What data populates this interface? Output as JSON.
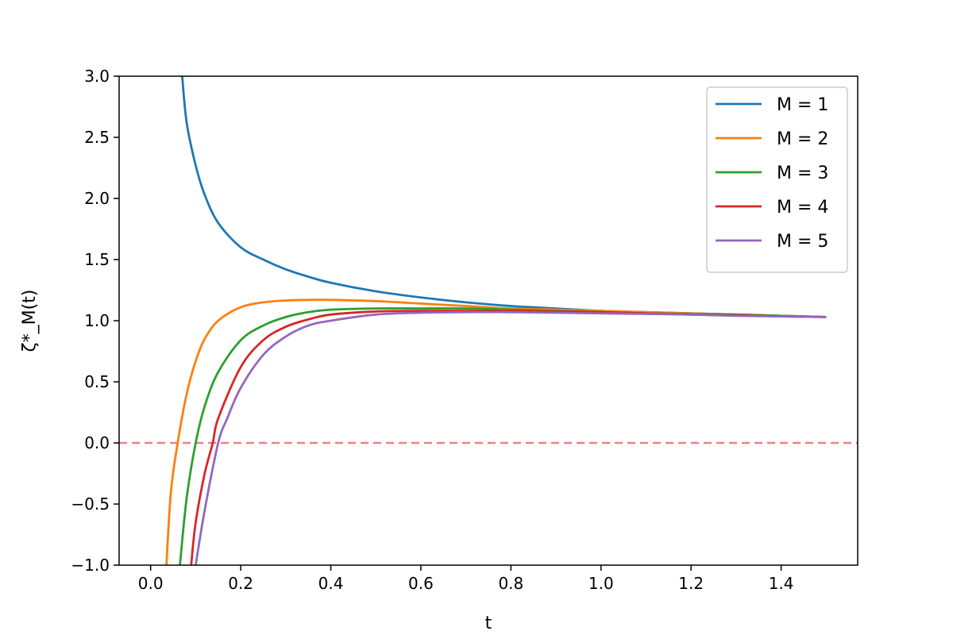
{
  "chart_data": {
    "type": "line",
    "xlabel": "t",
    "ylabel": "ζ*_M(t)",
    "xlim": [
      -0.07,
      1.57
    ],
    "ylim": [
      -1.0,
      3.0
    ],
    "x_ticks": [
      0.0,
      0.2,
      0.4,
      0.6,
      0.8,
      1.0,
      1.2,
      1.4
    ],
    "x_tick_labels": [
      "0.0",
      "0.2",
      "0.4",
      "0.6",
      "0.8",
      "1.0",
      "1.2",
      "1.4"
    ],
    "y_ticks": [
      -1.0,
      -0.5,
      0.0,
      0.5,
      1.0,
      1.5,
      2.0,
      2.5,
      3.0
    ],
    "y_tick_labels": [
      "−1.0",
      "−0.5",
      "0.0",
      "0.5",
      "1.0",
      "1.5",
      "2.0",
      "2.5",
      "3.0"
    ],
    "legend_position": "top-right",
    "reference_line": {
      "y": 0.0,
      "style": "dashed",
      "color": "#f08080"
    },
    "series": [
      {
        "name": "M = 1",
        "color": "#1f77b4",
        "points": [
          [
            0.07,
            3.0
          ],
          [
            0.08,
            2.62
          ],
          [
            0.1,
            2.27
          ],
          [
            0.12,
            2.03
          ],
          [
            0.15,
            1.8
          ],
          [
            0.2,
            1.6
          ],
          [
            0.25,
            1.5
          ],
          [
            0.3,
            1.42
          ],
          [
            0.35,
            1.36
          ],
          [
            0.4,
            1.31
          ],
          [
            0.5,
            1.24
          ],
          [
            0.6,
            1.19
          ],
          [
            0.7,
            1.15
          ],
          [
            0.8,
            1.12
          ],
          [
            0.9,
            1.1
          ],
          [
            1.0,
            1.08
          ],
          [
            1.1,
            1.07
          ],
          [
            1.2,
            1.06
          ],
          [
            1.3,
            1.05
          ],
          [
            1.4,
            1.04
          ],
          [
            1.5,
            1.03
          ]
        ]
      },
      {
        "name": "M = 2",
        "color": "#ff7f0e",
        "points": [
          [
            0.035,
            -1.0
          ],
          [
            0.045,
            -0.4
          ],
          [
            0.06,
            0.0
          ],
          [
            0.08,
            0.4
          ],
          [
            0.1,
            0.67
          ],
          [
            0.12,
            0.85
          ],
          [
            0.15,
            1.0
          ],
          [
            0.2,
            1.11
          ],
          [
            0.25,
            1.15
          ],
          [
            0.3,
            1.165
          ],
          [
            0.35,
            1.17
          ],
          [
            0.4,
            1.17
          ],
          [
            0.5,
            1.16
          ],
          [
            0.6,
            1.14
          ],
          [
            0.7,
            1.12
          ],
          [
            0.8,
            1.1
          ],
          [
            0.9,
            1.09
          ],
          [
            1.0,
            1.08
          ],
          [
            1.1,
            1.07
          ],
          [
            1.2,
            1.06
          ],
          [
            1.3,
            1.05
          ],
          [
            1.4,
            1.04
          ],
          [
            1.5,
            1.03
          ]
        ]
      },
      {
        "name": "M = 3",
        "color": "#2ca02c",
        "points": [
          [
            0.065,
            -1.0
          ],
          [
            0.08,
            -0.45
          ],
          [
            0.1,
            0.0
          ],
          [
            0.12,
            0.3
          ],
          [
            0.15,
            0.58
          ],
          [
            0.2,
            0.84
          ],
          [
            0.25,
            0.96
          ],
          [
            0.3,
            1.03
          ],
          [
            0.35,
            1.07
          ],
          [
            0.4,
            1.09
          ],
          [
            0.5,
            1.1
          ],
          [
            0.6,
            1.1
          ],
          [
            0.7,
            1.1
          ],
          [
            0.8,
            1.09
          ],
          [
            0.9,
            1.08
          ],
          [
            1.0,
            1.07
          ],
          [
            1.1,
            1.06
          ],
          [
            1.2,
            1.055
          ],
          [
            1.3,
            1.05
          ],
          [
            1.4,
            1.04
          ],
          [
            1.5,
            1.03
          ]
        ]
      },
      {
        "name": "M = 4",
        "color": "#d62728",
        "points": [
          [
            0.09,
            -1.0
          ],
          [
            0.1,
            -0.65
          ],
          [
            0.12,
            -0.25
          ],
          [
            0.138,
            0.0
          ],
          [
            0.15,
            0.2
          ],
          [
            0.2,
            0.62
          ],
          [
            0.25,
            0.84
          ],
          [
            0.3,
            0.95
          ],
          [
            0.35,
            1.01
          ],
          [
            0.4,
            1.05
          ],
          [
            0.5,
            1.075
          ],
          [
            0.6,
            1.08
          ],
          [
            0.7,
            1.08
          ],
          [
            0.8,
            1.08
          ],
          [
            0.9,
            1.075
          ],
          [
            1.0,
            1.07
          ],
          [
            1.1,
            1.06
          ],
          [
            1.2,
            1.05
          ],
          [
            1.3,
            1.045
          ],
          [
            1.4,
            1.035
          ],
          [
            1.5,
            1.03
          ]
        ]
      },
      {
        "name": "M = 5",
        "color": "#9467bd",
        "points": [
          [
            0.1,
            -1.0
          ],
          [
            0.12,
            -0.55
          ],
          [
            0.15,
            0.0
          ],
          [
            0.17,
            0.2
          ],
          [
            0.2,
            0.45
          ],
          [
            0.25,
            0.72
          ],
          [
            0.3,
            0.87
          ],
          [
            0.35,
            0.96
          ],
          [
            0.4,
            1.0
          ],
          [
            0.5,
            1.05
          ],
          [
            0.6,
            1.065
          ],
          [
            0.7,
            1.07
          ],
          [
            0.8,
            1.07
          ],
          [
            0.9,
            1.065
          ],
          [
            1.0,
            1.06
          ],
          [
            1.1,
            1.055
          ],
          [
            1.2,
            1.05
          ],
          [
            1.3,
            1.04
          ],
          [
            1.4,
            1.035
          ],
          [
            1.5,
            1.03
          ]
        ]
      }
    ]
  }
}
